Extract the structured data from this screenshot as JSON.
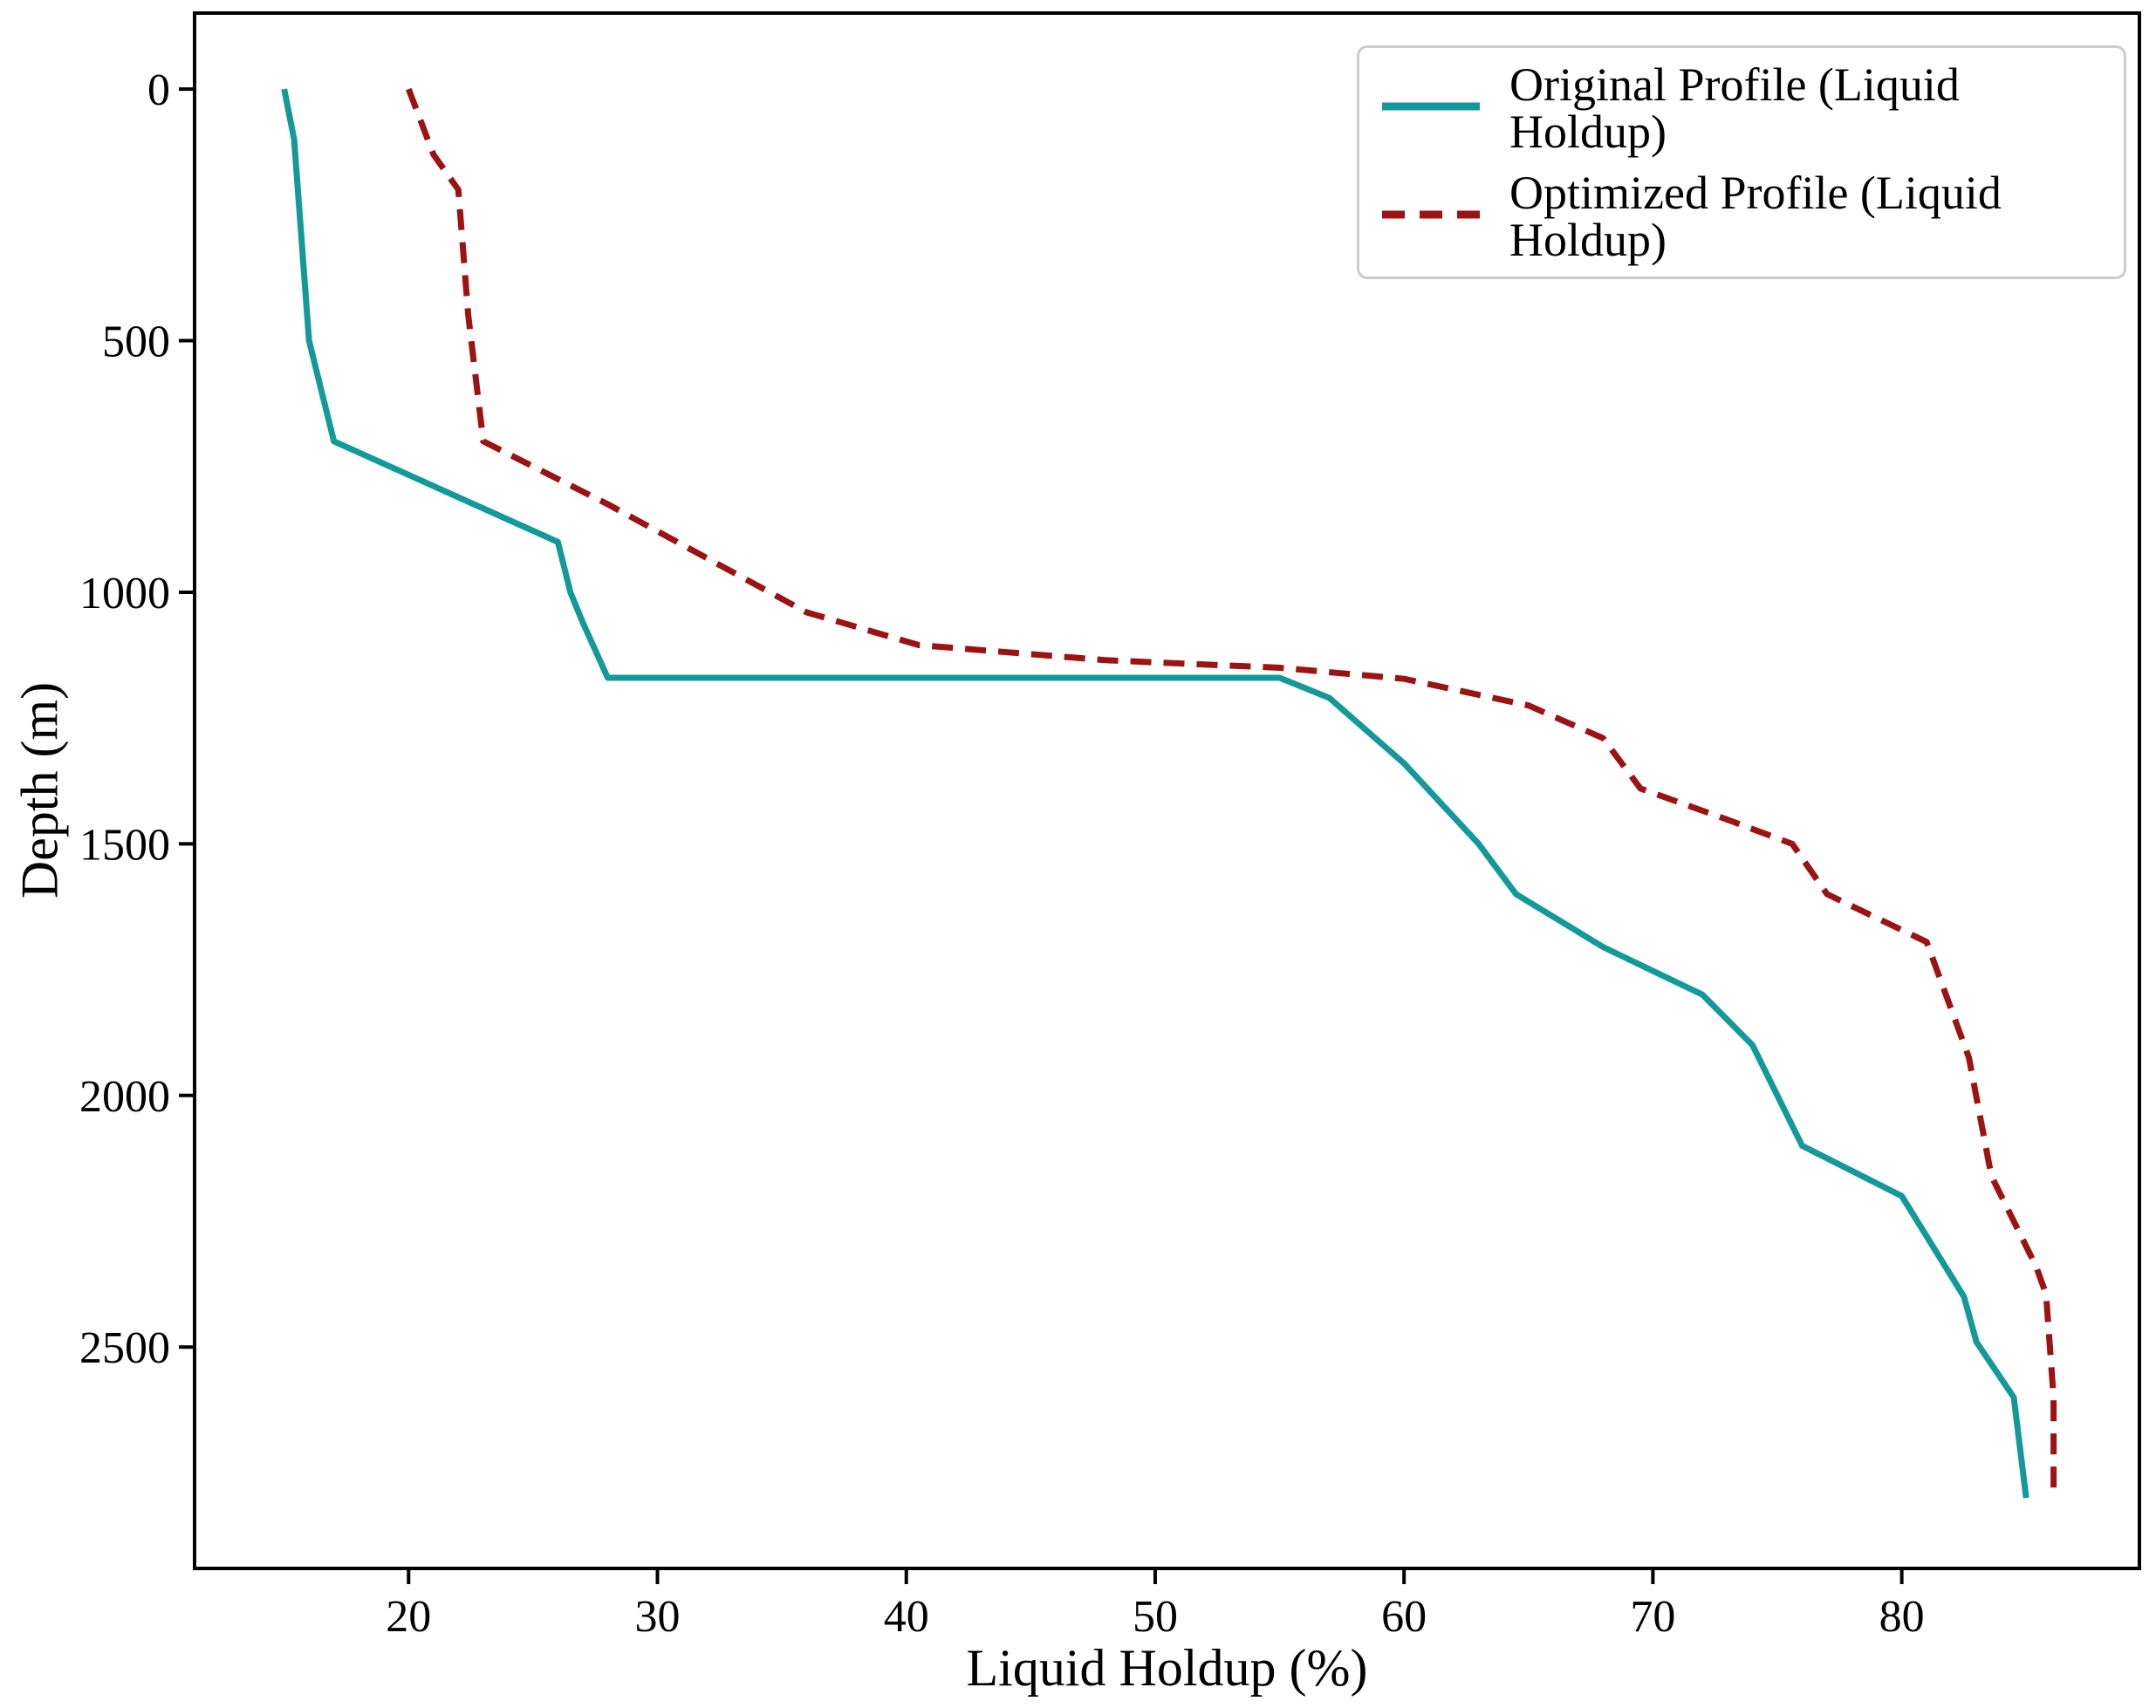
{
  "figure": {
    "background": "#ffffff",
    "axis_color": "#000000",
    "legend_border_color": "#cccccc"
  },
  "chart_data": {
    "type": "line",
    "title": "",
    "xlabel": "Liquid Holdup (%)",
    "ylabel": "Depth (m)",
    "xlim": [
      11.4,
      89.55
    ],
    "ylim_depth": [
      -151,
      2940
    ],
    "y_axis_inverted": true,
    "grid": false,
    "legend_position": "top-right",
    "x_ticks": [
      20,
      30,
      40,
      50,
      60,
      70,
      80
    ],
    "y_ticks": [
      0,
      500,
      1000,
      1500,
      2000,
      2500
    ],
    "series": [
      {
        "name": "Original Profile (Liquid Holdup)",
        "color": "#14999a",
        "style": "solid",
        "line_width": 7,
        "points_holdup_depth": [
          [
            15.0,
            0
          ],
          [
            15.4,
            100
          ],
          [
            16.0,
            500
          ],
          [
            17.0,
            700
          ],
          [
            26.0,
            900
          ],
          [
            26.5,
            1000
          ],
          [
            27.0,
            1060
          ],
          [
            28.0,
            1170
          ],
          [
            55.0,
            1170
          ],
          [
            57.0,
            1210
          ],
          [
            60.0,
            1340
          ],
          [
            63.0,
            1500
          ],
          [
            64.5,
            1600
          ],
          [
            68.0,
            1705
          ],
          [
            72.0,
            1800
          ],
          [
            74.0,
            1900
          ],
          [
            76.0,
            2100
          ],
          [
            80.0,
            2200
          ],
          [
            82.5,
            2400
          ],
          [
            83.0,
            2490
          ],
          [
            84.5,
            2600
          ],
          [
            85.0,
            2800
          ]
        ]
      },
      {
        "name": "Optimized Profile (Liquid Holdup)",
        "color": "#9b1313",
        "style": "dashed",
        "line_width": 7,
        "points_holdup_depth": [
          [
            20.0,
            0
          ],
          [
            21.0,
            130
          ],
          [
            22.0,
            200
          ],
          [
            22.4,
            450
          ],
          [
            23.0,
            700
          ],
          [
            28.0,
            825
          ],
          [
            36.0,
            1040
          ],
          [
            40.5,
            1105
          ],
          [
            48.0,
            1135
          ],
          [
            55.0,
            1150
          ],
          [
            60.0,
            1172
          ],
          [
            65.0,
            1225
          ],
          [
            68.0,
            1290
          ],
          [
            69.5,
            1390
          ],
          [
            73.0,
            1452
          ],
          [
            75.6,
            1500
          ],
          [
            77.0,
            1600
          ],
          [
            81.0,
            1695
          ],
          [
            82.7,
            1925
          ],
          [
            83.6,
            2160
          ],
          [
            84.7,
            2270
          ],
          [
            85.4,
            2340
          ],
          [
            85.8,
            2395
          ],
          [
            86.1,
            2600
          ],
          [
            86.1,
            2800
          ]
        ]
      }
    ]
  }
}
